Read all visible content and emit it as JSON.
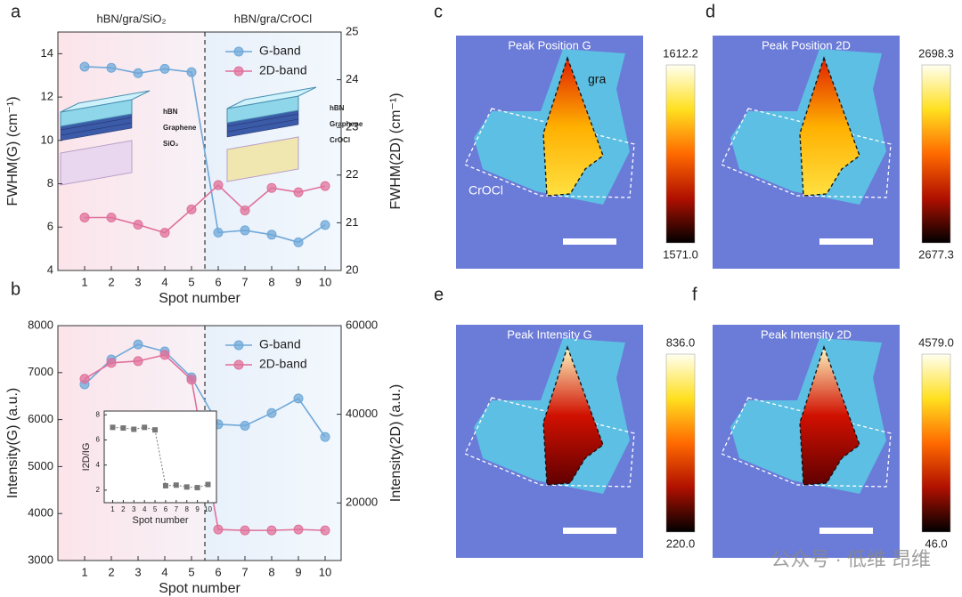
{
  "panel_labels": [
    "a",
    "b",
    "c",
    "d",
    "e",
    "f"
  ],
  "watermark": "公众号 · 低维 昂维",
  "images": [
    {
      "title": "Peak Position G",
      "colorbar_max": "1612.2",
      "colorbar_min": "1571.0",
      "labels": [
        "gra",
        "CrOCl"
      ]
    },
    {
      "title": "Peak Position 2D",
      "colorbar_max": "2698.3",
      "colorbar_min": "2677.3"
    },
    {
      "title": "Peak Intensity G",
      "colorbar_max": "836.0",
      "colorbar_min": "220.0"
    },
    {
      "title": "Peak Intensity 2D",
      "colorbar_max": "4579.0",
      "colorbar_min": "46.0"
    }
  ],
  "chart_data": [
    {
      "type": "line",
      "x": [
        1,
        2,
        3,
        4,
        5,
        6,
        7,
        8,
        9,
        10
      ],
      "xlim": [
        0,
        10.6
      ],
      "xticks": [
        1,
        2,
        3,
        4,
        5,
        6,
        7,
        8,
        9,
        10
      ],
      "xlabel": "Spot number",
      "ylabel": "FWHM(G) (cm⁻¹)",
      "y2label": "FWHM(2D) (cm⁻¹)",
      "ylim": [
        4,
        15
      ],
      "yticks": [
        4,
        6,
        8,
        10,
        12,
        14
      ],
      "y2lim": [
        20,
        25
      ],
      "y2ticks": [
        20,
        21,
        22,
        23,
        24,
        25
      ],
      "legend": "upper right",
      "divider": 5.5,
      "regions": [
        "hBN/gra/SiO₂",
        "hBN/gra/CrOCl"
      ],
      "inset_labels": [
        "hBN",
        "Graphene",
        "SiO₂",
        "hBN",
        "Graphene",
        "CrOCl"
      ],
      "series": [
        {
          "name": "G-band",
          "color": "#6fa8d8",
          "values": [
            13.4,
            13.35,
            13.1,
            13.3,
            13.15,
            5.75,
            5.85,
            5.65,
            5.3,
            6.1
          ]
        },
        {
          "name": "2D-band",
          "color": "#e0709a",
          "axis": "y2",
          "values": [
            21.11,
            21.11,
            20.96,
            20.79,
            21.28,
            21.79,
            21.26,
            21.73,
            21.64,
            21.77
          ]
        }
      ]
    },
    {
      "type": "line",
      "x": [
        1,
        2,
        3,
        4,
        5,
        6,
        7,
        8,
        9,
        10
      ],
      "xlim": [
        0,
        10.6
      ],
      "xticks": [
        1,
        2,
        3,
        4,
        5,
        6,
        7,
        8,
        9,
        10
      ],
      "xlabel": "Spot number",
      "ylabel": "Intensity(G) (a.u.)",
      "y2label": "Intensity(2D) (a.u.)",
      "ylim": [
        3000,
        8000
      ],
      "yticks": [
        3000,
        4000,
        5000,
        6000,
        7000,
        8000
      ],
      "y2lim": [
        7000,
        60000
      ],
      "y2ticks": [
        20000,
        40000,
        60000
      ],
      "legend": "upper right",
      "divider": 5.5,
      "series": [
        {
          "name": "G-band",
          "color": "#6fa8d8",
          "values": [
            6750,
            7280,
            7600,
            7450,
            6900,
            5900,
            5870,
            6140,
            6450,
            5630
          ]
        },
        {
          "name": "2D-band",
          "color": "#e0709a",
          "axis": "y2",
          "values": [
            48000,
            51600,
            52000,
            53400,
            47800,
            14000,
            13800,
            13800,
            14000,
            13800
          ]
        }
      ]
    },
    {
      "type": "line",
      "x": [
        1,
        2,
        3,
        4,
        5,
        6,
        7,
        8,
        9,
        10
      ],
      "xlim": [
        0.2,
        10.8
      ],
      "xticks": [
        1,
        2,
        3,
        4,
        5,
        6,
        7,
        8,
        9,
        10
      ],
      "xlabel": "Spot number",
      "ylabel": "I2D/IG",
      "ylim": [
        1,
        8.3
      ],
      "yticks": [
        2,
        4,
        6,
        8
      ],
      "color": "#777777",
      "values": [
        7.0,
        6.95,
        6.85,
        7.0,
        6.8,
        2.35,
        2.4,
        2.25,
        2.2,
        2.45
      ]
    }
  ]
}
